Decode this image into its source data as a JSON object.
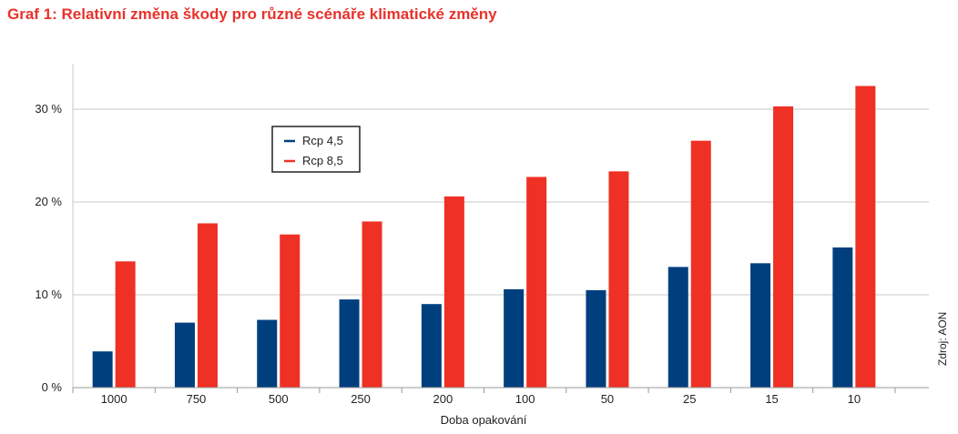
{
  "title": "Graf 1: Relativní změna škody pro různé scénáře klimatické změny",
  "source": "Zdroj: AON",
  "colors": {
    "rcp45": "#003f7d",
    "rcp85": "#ee3124",
    "title": "#e8322b",
    "grid": "#c8c8c8"
  },
  "chart_data": {
    "type": "bar",
    "title": "Graf 1: Relativní změna škody pro různé scénáře klimatické změny",
    "xlabel": "Doba opakování",
    "ylabel": "",
    "categories": [
      "1000",
      "750",
      "500",
      "250",
      "200",
      "100",
      "50",
      "25",
      "15",
      "10"
    ],
    "series": [
      {
        "name": "Rcp 4,5",
        "color": "#003f7d",
        "values": [
          3.9,
          7.0,
          7.3,
          9.5,
          9.0,
          10.6,
          10.5,
          13.0,
          13.4,
          15.1
        ]
      },
      {
        "name": "Rcp 8,5",
        "color": "#ee3124",
        "values": [
          13.6,
          17.7,
          16.5,
          17.9,
          20.6,
          22.7,
          23.3,
          26.6,
          30.3,
          32.5
        ]
      }
    ],
    "ylim": [
      0,
      35
    ],
    "yticks": [
      0,
      10,
      20,
      30
    ],
    "ytick_labels": [
      "0 %",
      "10 %",
      "20 %",
      "30 %"
    ],
    "grid": true,
    "legend_placement": "top-left"
  }
}
